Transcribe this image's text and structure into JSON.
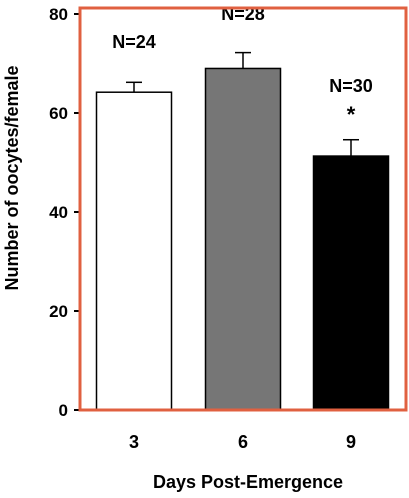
{
  "chart_data": {
    "type": "bar",
    "xlabel": "Days Post-Emergence",
    "ylabel": "Number of oocytes/female",
    "ylim": [
      0,
      80
    ],
    "yticks": [
      0,
      20,
      40,
      60,
      80
    ],
    "categories": [
      "3",
      "6",
      "9"
    ],
    "values": [
      64.2,
      69.0,
      51.3
    ],
    "errors": [
      2.0,
      3.2,
      3.3
    ],
    "annotations": [
      "N=24",
      "N=28",
      "N=30"
    ],
    "significance": [
      "",
      "",
      "*"
    ],
    "bar_colors": [
      "#ffffff",
      "#767676",
      "#000000"
    ],
    "frame_color": "#e06040",
    "legend": "none",
    "grid": false
  }
}
